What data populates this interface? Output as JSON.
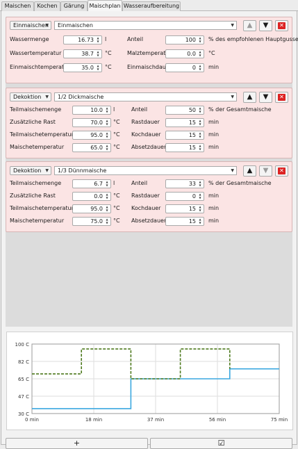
{
  "tabs": [
    {
      "label": "Maischen",
      "active": false
    },
    {
      "label": "Kochen",
      "active": false
    },
    {
      "label": "Gärung",
      "active": false
    },
    {
      "label": "Maischplan",
      "active": true
    },
    {
      "label": "Wasseraufbereitung",
      "active": false
    }
  ],
  "steps": [
    {
      "type": "Einmaischen",
      "name": "Einmaischen",
      "up_enabled": false,
      "down_enabled": true,
      "rows": [
        {
          "l_label": "Wassermenge",
          "l_value": "16.73",
          "l_unit": "l",
          "r_label": "Anteil",
          "r_value": "100",
          "r_unit": "% des empfohlenen Hauptgusses"
        },
        {
          "l_label": "Wassertemperatur",
          "l_value": "38.7",
          "l_unit": "°C",
          "r_label": "Malztemperatur",
          "r_value": "0.0",
          "r_unit": "°C"
        },
        {
          "l_label": "Einmaischtemperatur",
          "l_value": "35.0",
          "l_unit": "°C",
          "r_label": "Einmaischdauer",
          "r_value": "0",
          "r_unit": "min"
        }
      ]
    },
    {
      "type": "Dekoktion",
      "name": "1/2 Dickmaische",
      "up_enabled": true,
      "down_enabled": true,
      "rows": [
        {
          "l_label": "Teilmaischemenge",
          "l_value": "10.0",
          "l_unit": "l",
          "r_label": "Anteil",
          "r_value": "50",
          "r_unit": "% der Gesamtmaische"
        },
        {
          "l_label": "Zusätzliche Rast",
          "l_value": "70.0",
          "l_unit": "°C",
          "r_label": "Rastdauer",
          "r_value": "15",
          "r_unit": "min"
        },
        {
          "l_label": "Teilmaischetemperatur",
          "l_value": "95.0",
          "l_unit": "°C",
          "r_label": "Kochdauer",
          "r_value": "15",
          "r_unit": "min"
        },
        {
          "l_label": "Maischetemperatur",
          "l_value": "65.0",
          "l_unit": "°C",
          "r_label": "Absetzdauer",
          "r_value": "15",
          "r_unit": "min"
        }
      ]
    },
    {
      "type": "Dekoktion",
      "name": "1/3 Dünnmaische",
      "up_enabled": true,
      "down_enabled": false,
      "rows": [
        {
          "l_label": "Teilmaischemenge",
          "l_value": "6.7",
          "l_unit": "l",
          "r_label": "Anteil",
          "r_value": "33",
          "r_unit": "% der Gesamtmaische"
        },
        {
          "l_label": "Zusätzliche Rast",
          "l_value": "0.0",
          "l_unit": "°C",
          "r_label": "Rastdauer",
          "r_value": "0",
          "r_unit": "min"
        },
        {
          "l_label": "Teilmaischetemperatur",
          "l_value": "95.0",
          "l_unit": "°C",
          "r_label": "Kochdauer",
          "r_value": "15",
          "r_unit": "min"
        },
        {
          "l_label": "Maischetemperatur",
          "l_value": "75.0",
          "l_unit": "°C",
          "r_label": "Absetzdauer",
          "r_value": "15",
          "r_unit": "min"
        }
      ]
    }
  ],
  "buttons": {
    "add_label": "+",
    "apply_label": "☑"
  },
  "colors": {
    "main_mash": "#3aa7e0",
    "partial_mash": "#4e7a1e"
  },
  "chart_data": {
    "type": "line",
    "xlabel": "",
    "ylabel": "",
    "x_ticks": [
      "0 min",
      "18 min",
      "37 min",
      "56 min",
      "75 min"
    ],
    "y_ticks": [
      "30 C",
      "47 C",
      "65 C",
      "82 C",
      "100 C"
    ],
    "xlim": [
      0,
      75
    ],
    "ylim": [
      30,
      100
    ],
    "grid": true,
    "series": [
      {
        "style": "solid",
        "points": [
          [
            0,
            35
          ],
          [
            30,
            35
          ],
          [
            30,
            65
          ],
          [
            60,
            65
          ],
          [
            60,
            75
          ],
          [
            75,
            75
          ]
        ]
      },
      {
        "style": "dashed",
        "points": [
          [
            0,
            70
          ],
          [
            15,
            70
          ],
          [
            15,
            95
          ],
          [
            30,
            95
          ],
          [
            30,
            65
          ],
          [
            45,
            65
          ],
          [
            45,
            95
          ],
          [
            60,
            95
          ],
          [
            60,
            75
          ]
        ]
      }
    ]
  }
}
